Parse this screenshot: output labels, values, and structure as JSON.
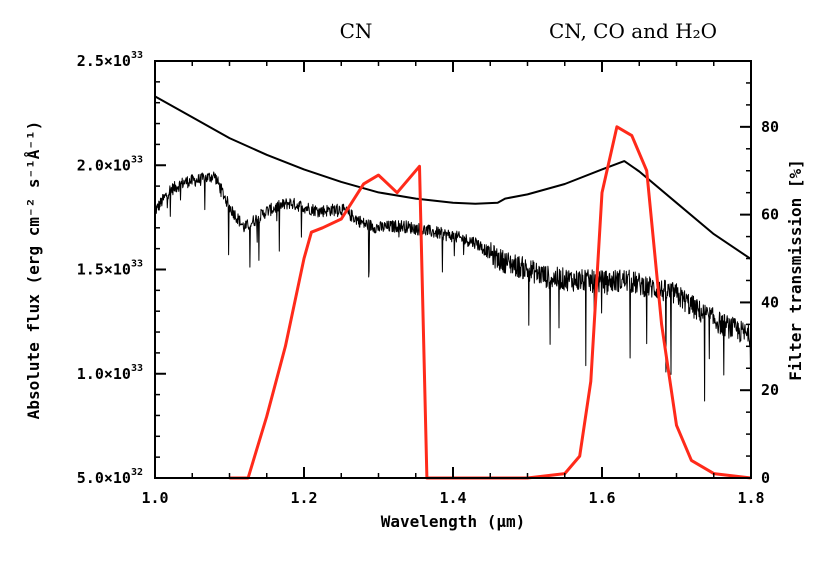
{
  "chart_data": {
    "type": "line",
    "title": "",
    "xlabel": "Wavelength (µm)",
    "ylabel_left": "Absolute flux (erg cm⁻² s⁻¹Å⁻¹)",
    "ylabel_right": "Filter transmission [%]",
    "xlim": [
      1.0,
      1.8
    ],
    "ylim_left": [
      5e+32,
      2.5e+33
    ],
    "ylim_right": [
      0,
      95
    ],
    "grid": false,
    "x_ticks": [
      1.0,
      1.2,
      1.4,
      1.6,
      1.8
    ],
    "x_tick_labels": [
      "1.0",
      "1.2",
      "1.4",
      "1.6",
      "1.8"
    ],
    "left_ticks": [
      {
        "value": 5e+32,
        "mant": "5.0×10",
        "exp": "32"
      },
      {
        "value": 1e+33,
        "mant": "1.0×10",
        "exp": "33"
      },
      {
        "value": 1.5e+33,
        "mant": "1.5×10",
        "exp": "33"
      },
      {
        "value": 2e+33,
        "mant": "2.0×10",
        "exp": "33"
      },
      {
        "value": 2.5e+33,
        "mant": "2.5×10",
        "exp": "33"
      }
    ],
    "right_ticks": [
      0,
      20,
      40,
      60,
      80
    ],
    "right_tick_labels": [
      "0",
      "20",
      "40",
      "60",
      "80"
    ],
    "annotations": [
      {
        "text": "CN",
        "x": 1.3
      },
      {
        "text": "CN, CO and H₂O",
        "x": 1.63
      }
    ],
    "series": [
      {
        "axis": "left",
        "color": "#000000",
        "style": "noisy",
        "x": [
          1.0,
          1.02,
          1.04,
          1.06,
          1.08,
          1.1,
          1.12,
          1.15,
          1.18,
          1.2,
          1.22,
          1.25,
          1.28,
          1.3,
          1.33,
          1.36,
          1.4,
          1.43,
          1.46,
          1.5,
          1.53,
          1.56,
          1.6,
          1.63,
          1.66,
          1.7,
          1.73,
          1.76,
          1.8
        ],
        "y": [
          1.78e+33,
          1.88e+33,
          1.92e+33,
          1.93e+33,
          1.95e+33,
          1.8e+33,
          1.7e+33,
          1.78e+33,
          1.82e+33,
          1.8e+33,
          1.78e+33,
          1.79e+33,
          1.72e+33,
          1.7e+33,
          1.71e+33,
          1.69e+33,
          1.66e+33,
          1.63e+33,
          1.55e+33,
          1.5e+33,
          1.46e+33,
          1.45e+33,
          1.44e+33,
          1.45e+33,
          1.42e+33,
          1.38e+33,
          1.3e+33,
          1.24e+33,
          1.18e+33
        ]
      },
      {
        "axis": "left",
        "color": "#000000",
        "style": "smooth",
        "x": [
          1.0,
          1.05,
          1.1,
          1.15,
          1.2,
          1.25,
          1.3,
          1.35,
          1.4,
          1.43,
          1.46,
          1.47,
          1.5,
          1.55,
          1.6,
          1.63,
          1.65,
          1.7,
          1.75,
          1.8
        ],
        "y": [
          2.33e+33,
          2.23e+33,
          2.13e+33,
          2.05e+33,
          1.98e+33,
          1.92e+33,
          1.87e+33,
          1.84e+33,
          1.82e+33,
          1.815e+33,
          1.82e+33,
          1.84e+33,
          1.86e+33,
          1.91e+33,
          1.98e+33,
          2.02e+33,
          1.97e+33,
          1.82e+33,
          1.67e+33,
          1.55e+33
        ]
      },
      {
        "axis": "right",
        "color": "#ff2a1a",
        "style": "smooth",
        "x": [
          1.1,
          1.125,
          1.15,
          1.175,
          1.2,
          1.21,
          1.225,
          1.25,
          1.28,
          1.3,
          1.325,
          1.355,
          1.365,
          1.455,
          1.5,
          1.55,
          1.57,
          1.585,
          1.6,
          1.62,
          1.64,
          1.66,
          1.68,
          1.7,
          1.72,
          1.75,
          1.8
        ],
        "y": [
          0,
          0,
          14,
          30,
          50,
          56,
          57,
          59,
          67,
          69,
          65,
          71,
          0,
          0,
          0,
          1,
          5,
          22,
          65,
          80,
          78,
          70,
          35,
          12,
          4,
          1,
          0
        ]
      }
    ]
  }
}
